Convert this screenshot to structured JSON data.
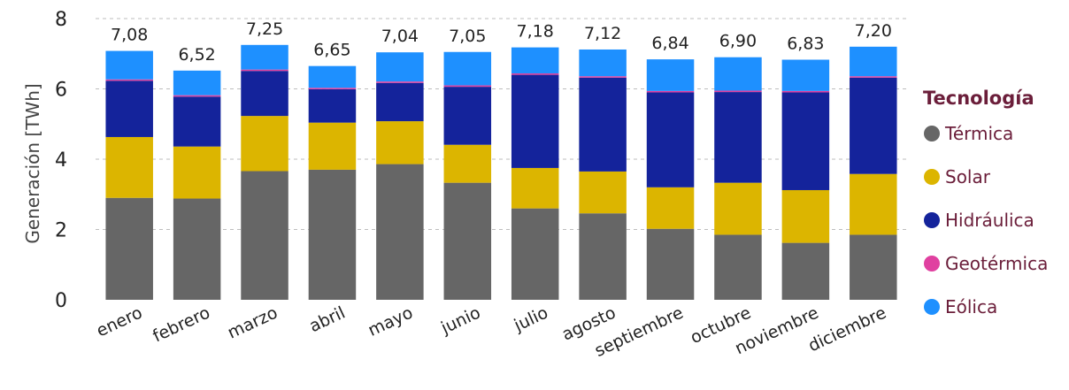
{
  "chart_data": {
    "type": "bar",
    "stacked": true,
    "title": "",
    "xlabel": "",
    "ylabel": "Generación [TWh]",
    "ylim": [
      0,
      8
    ],
    "yticks": [
      0,
      2,
      4,
      6,
      8
    ],
    "grid": true,
    "legend_title": "Tecnología",
    "legend_position": "right",
    "categories": [
      "enero",
      "febrero",
      "marzo",
      "abril",
      "mayo",
      "junio",
      "julio",
      "agosto",
      "septiembre",
      "octubre",
      "noviembre",
      "diciembre"
    ],
    "totals": [
      "7,08",
      "6,52",
      "7,25",
      "6,65",
      "7,04",
      "7,05",
      "7,18",
      "7,12",
      "6,84",
      "6,90",
      "6,83",
      "7,20"
    ],
    "series": [
      {
        "name": "Térmica",
        "color": "#666666",
        "values": [
          2.9,
          2.88,
          3.66,
          3.7,
          3.86,
          3.33,
          2.6,
          2.46,
          2.02,
          1.85,
          1.62,
          1.85
        ]
      },
      {
        "name": "Solar",
        "color": "#dcb500",
        "values": [
          1.73,
          1.48,
          1.57,
          1.34,
          1.22,
          1.08,
          1.15,
          1.19,
          1.18,
          1.48,
          1.5,
          1.73
        ]
      },
      {
        "name": "Hidráulica",
        "color": "#14239b",
        "values": [
          1.6,
          1.42,
          1.28,
          0.95,
          1.09,
          1.65,
          2.65,
          2.67,
          2.7,
          2.58,
          2.78,
          2.74
        ]
      },
      {
        "name": "Geotérmica",
        "color": "#e040a0",
        "values": [
          0.04,
          0.04,
          0.04,
          0.04,
          0.04,
          0.04,
          0.04,
          0.04,
          0.04,
          0.04,
          0.04,
          0.04
        ]
      },
      {
        "name": "Eólica",
        "color": "#1e90ff",
        "values": [
          0.81,
          0.7,
          0.7,
          0.62,
          0.83,
          0.95,
          0.74,
          0.76,
          0.9,
          0.95,
          0.89,
          0.84
        ]
      }
    ]
  }
}
